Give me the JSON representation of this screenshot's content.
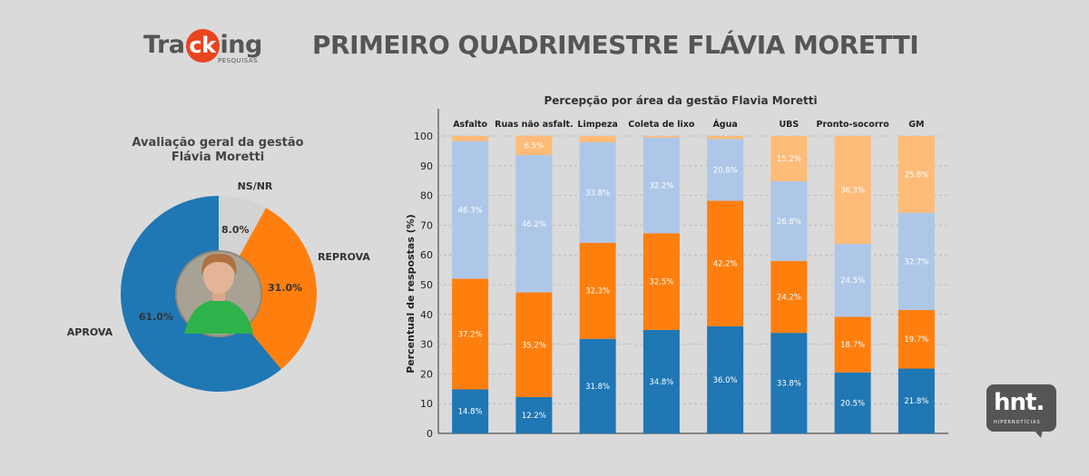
{
  "logo": {
    "text_start": "Tra",
    "text_ck": "ck",
    "text_end": "ing",
    "subtitle": "PESQUISAS"
  },
  "main_title": "PRIMEIRO QUADRIMESTRE FLÁVIA MORETTI",
  "watermark": {
    "text": "hnt.",
    "subtitle": "HIPERNOTÍCIAS"
  },
  "colors": {
    "aprova": "#1f77b4",
    "reprova": "#ff7f0e",
    "nsnr": "#d3d3d3",
    "light_blue": "#aec7e8",
    "light_orange": "#ffbb78"
  },
  "chart_data": [
    {
      "type": "pie",
      "title_line1": "Avaliação geral da gestão",
      "title_line2": "Flávia Moretti",
      "slices": [
        {
          "label": "APROVA",
          "value": 61.0,
          "value_label": "61.0%",
          "color": "#1f77b4"
        },
        {
          "label": "REPROVA",
          "value": 31.0,
          "value_label": "31.0%",
          "color": "#ff7f0e"
        },
        {
          "label": "NS/NR",
          "value": 8.0,
          "value_label": "8.0%",
          "color": "#d3d3d3"
        }
      ]
    },
    {
      "type": "bar",
      "stacked": true,
      "title": "Percepção por área da gestão Flavia Moretti",
      "ylabel": "Percentual de respostas (%)",
      "ylim": [
        0,
        100
      ],
      "yticks": [
        0,
        10,
        20,
        30,
        40,
        50,
        60,
        70,
        80,
        90,
        100
      ],
      "categories": [
        "Asfalto",
        "Ruas não asfalt.",
        "Limpeza",
        "Coleta de lixo",
        "Água",
        "UBS",
        "Pronto-socorro",
        "GM"
      ],
      "series": [
        {
          "color": "#1f77b4",
          "values": [
            14.8,
            12.2,
            31.8,
            34.8,
            36.0,
            33.8,
            20.5,
            21.8
          ]
        },
        {
          "color": "#ff7f0e",
          "values": [
            37.2,
            35.2,
            32.3,
            32.5,
            42.2,
            24.2,
            18.7,
            19.7
          ]
        },
        {
          "color": "#aec7e8",
          "values": [
            46.3,
            46.2,
            33.8,
            32.2,
            20.8,
            26.8,
            24.5,
            32.7
          ]
        },
        {
          "color": "#ffbb78",
          "values": [
            1.7,
            6.5,
            2.1,
            0.5,
            1.0,
            15.2,
            36.3,
            25.8
          ]
        }
      ],
      "labeled_threshold": 5.0,
      "grid": true
    }
  ]
}
